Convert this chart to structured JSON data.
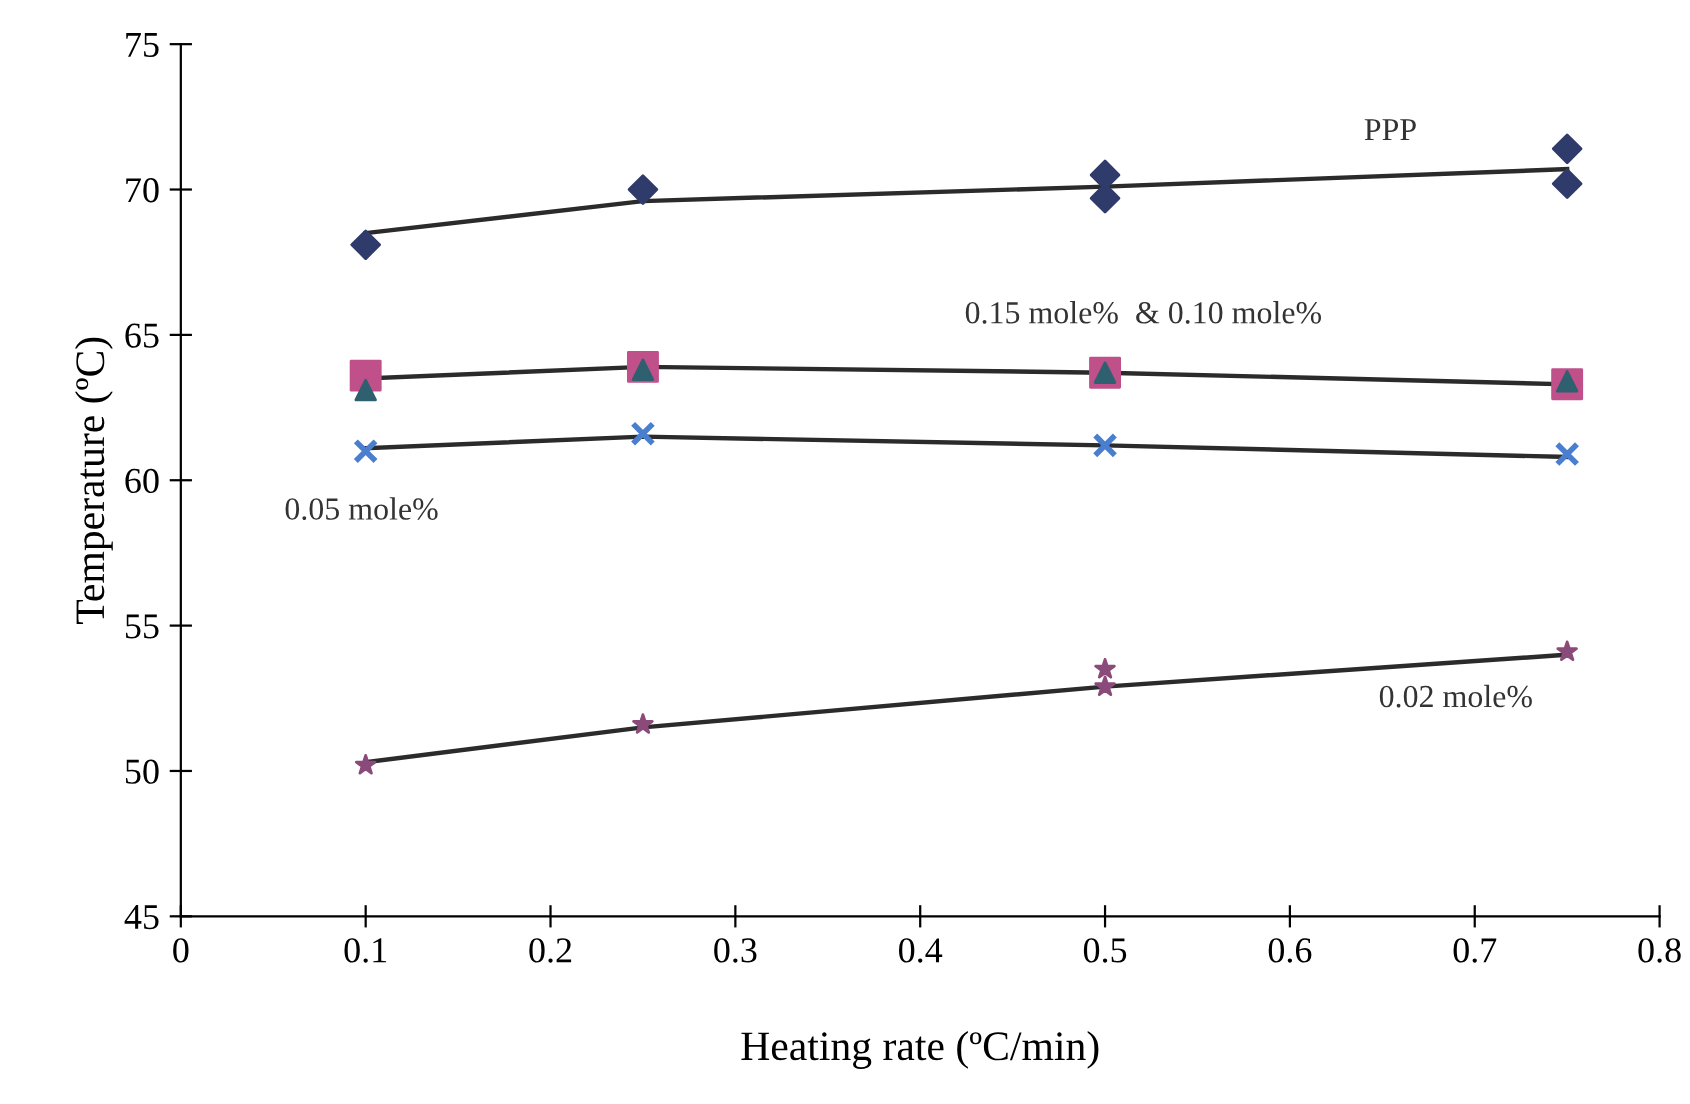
{
  "chart_data": {
    "type": "scatter",
    "xlabel": "Heating rate (ºC/min)",
    "ylabel": "Temperature (ºC)",
    "xlim": [
      0,
      0.8
    ],
    "xticks": [
      0,
      0.1,
      0.2,
      0.3,
      0.4,
      0.5,
      0.6,
      0.7,
      0.8
    ],
    "ylim": [
      45,
      75
    ],
    "yticks": [
      45,
      50,
      55,
      60,
      65,
      70,
      75
    ],
    "grid": false,
    "legend": false,
    "series": [
      {
        "type": "line",
        "marker": "none",
        "color": "#2b2b2b",
        "x": [
          0.1,
          0.25,
          0.5,
          0.75
        ],
        "values": [
          68.5,
          69.6,
          70.1,
          70.7
        ]
      },
      {
        "type": "line",
        "marker": "none",
        "color": "#2b2b2b",
        "x": [
          0.1,
          0.25,
          0.5,
          0.75
        ],
        "values": [
          63.5,
          63.9,
          63.7,
          63.3
        ]
      },
      {
        "type": "line",
        "marker": "none",
        "color": "#2b2b2b",
        "x": [
          0.1,
          0.25,
          0.5,
          0.75
        ],
        "values": [
          61.1,
          61.5,
          61.2,
          60.8
        ]
      },
      {
        "type": "line",
        "marker": "none",
        "color": "#2b2b2b",
        "x": [
          0.1,
          0.25,
          0.5,
          0.75
        ],
        "values": [
          50.3,
          51.5,
          52.9,
          54.0
        ]
      },
      {
        "marker": "diamond",
        "color": "#2f3b6b",
        "x": [
          0.1,
          0.25,
          0.5,
          0.5,
          0.75,
          0.75
        ],
        "values": [
          68.1,
          70.0,
          70.5,
          69.7,
          71.4,
          70.2
        ]
      },
      {
        "marker": "square",
        "color": "#c0508a",
        "x": [
          0.1,
          0.25,
          0.5,
          0.75
        ],
        "values": [
          63.6,
          63.9,
          63.7,
          63.3
        ]
      },
      {
        "marker": "triangle",
        "color": "#2f6070",
        "x": [
          0.1,
          0.25,
          0.5,
          0.75
        ],
        "values": [
          63.1,
          63.8,
          63.7,
          63.4
        ]
      },
      {
        "marker": "cross",
        "color": "#4a7fd0",
        "x": [
          0.1,
          0.25,
          0.5,
          0.75
        ],
        "values": [
          61.0,
          61.6,
          61.2,
          60.9
        ]
      },
      {
        "marker": "star",
        "color": "#8a4a7a",
        "x": [
          0.1,
          0.25,
          0.5,
          0.5,
          0.75
        ],
        "values": [
          50.2,
          51.6,
          53.5,
          52.9,
          54.1
        ]
      }
    ],
    "annotations": [
      "PPP",
      "0.15 mole%  & 0.10 mole%",
      "0.05 mole%",
      "0.02 mole%"
    ]
  }
}
